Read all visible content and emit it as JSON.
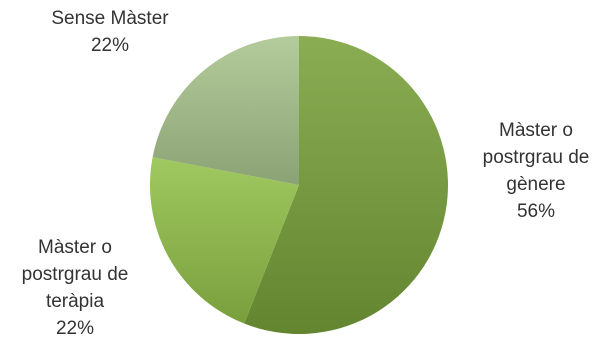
{
  "chart_data": {
    "type": "pie",
    "slices": [
      {
        "label_lines": [
          "Màster o",
          "postrgrau de",
          "gènere"
        ],
        "percent_label": "56%",
        "value": 56,
        "color": "#7aa23b"
      },
      {
        "label_lines": [
          "Màster o",
          "postrgrau de",
          "teràpia"
        ],
        "percent_label": "22%",
        "value": 22,
        "color": "#93c24a"
      },
      {
        "label_lines": [
          "Sense Màster"
        ],
        "percent_label": "22%",
        "value": 22,
        "color": "#aac58e"
      }
    ],
    "start_angle_deg": 0,
    "direction": "clockwise",
    "legend": "none",
    "data_labels": "outside"
  }
}
